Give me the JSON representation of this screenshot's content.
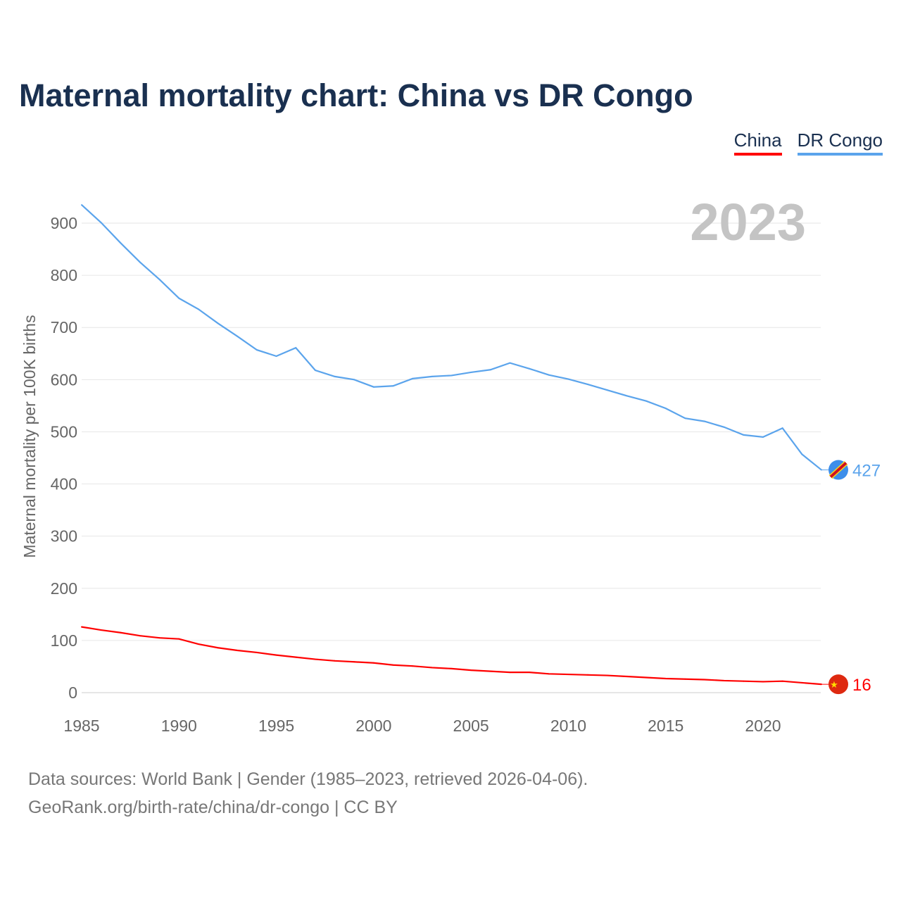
{
  "chart_data": {
    "type": "line",
    "title": "Maternal mortality chart: China vs DR Congo",
    "xlabel": "",
    "ylabel": "Maternal mortality per 100K births",
    "xlim": [
      1985,
      2023
    ],
    "ylim": [
      0,
      950
    ],
    "yticks": [
      0,
      100,
      200,
      300,
      400,
      500,
      600,
      700,
      800,
      900
    ],
    "xticks": [
      1985,
      1990,
      1995,
      2000,
      2005,
      2010,
      2015,
      2020
    ],
    "year_label": "2023",
    "grid": true,
    "legend": "top-right",
    "x": [
      1985,
      1986,
      1987,
      1988,
      1989,
      1990,
      1991,
      1992,
      1993,
      1994,
      1995,
      1996,
      1997,
      1998,
      1999,
      2000,
      2001,
      2002,
      2003,
      2004,
      2005,
      2006,
      2007,
      2008,
      2009,
      2010,
      2011,
      2012,
      2013,
      2014,
      2015,
      2016,
      2017,
      2018,
      2019,
      2020,
      2021,
      2022,
      2023
    ],
    "series": [
      {
        "name": "China",
        "color": "#ff0000",
        "end_label": "16",
        "values": [
          126,
          120,
          115,
          109,
          105,
          103,
          93,
          86,
          81,
          77,
          72,
          68,
          64,
          61,
          59,
          57,
          53,
          51,
          48,
          46,
          43,
          41,
          39,
          39,
          36,
          35,
          34,
          33,
          31,
          29,
          27,
          26,
          25,
          23,
          22,
          21,
          22,
          19,
          16
        ]
      },
      {
        "name": "DR Congo",
        "color": "#5ba4ec",
        "end_label": "427",
        "values": [
          935,
          901,
          862,
          825,
          792,
          756,
          735,
          708,
          683,
          657,
          645,
          661,
          618,
          606,
          600,
          586,
          588,
          602,
          606,
          608,
          614,
          619,
          632,
          621,
          609,
          601,
          591,
          580,
          569,
          559,
          545,
          526,
          520,
          509,
          494,
          490,
          507,
          457,
          427
        ]
      }
    ]
  },
  "source": {
    "line1": "Data sources: World Bank | Gender (1985–2023, retrieved 2026-04-06).",
    "line2": "GeoRank.org/birth-rate/china/dr-congo | CC BY"
  }
}
